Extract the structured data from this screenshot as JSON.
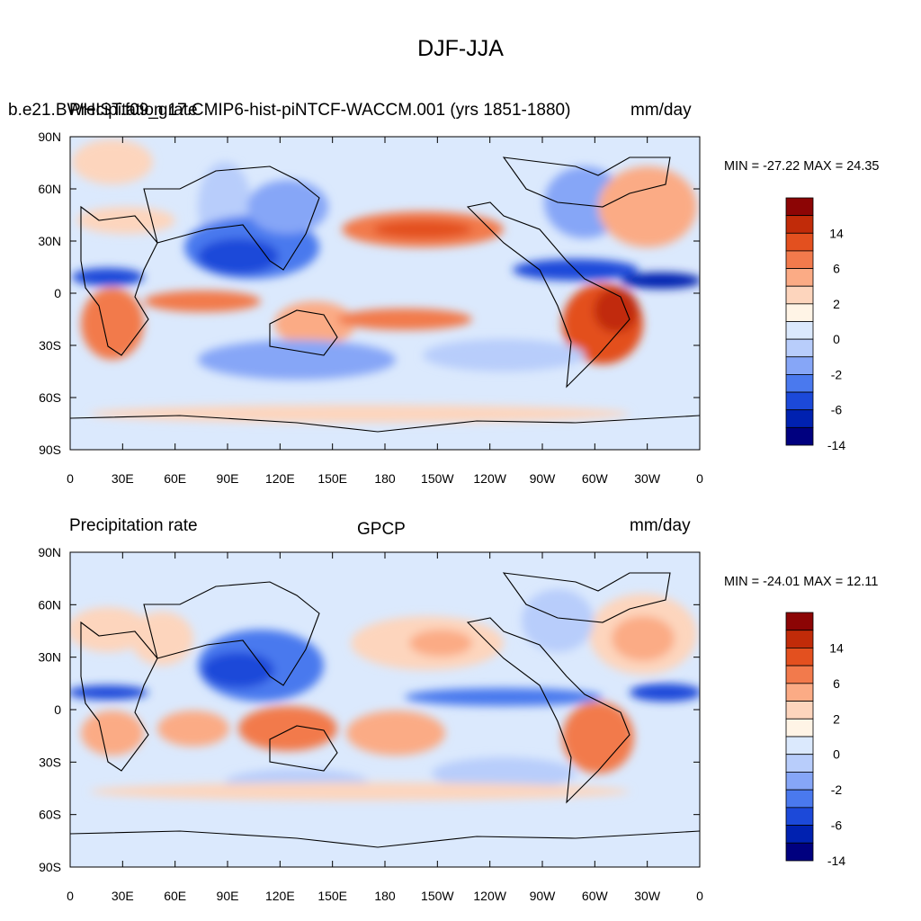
{
  "title": "DJF-JJA",
  "colorbar": {
    "colors": [
      "#00007f",
      "#0021b0",
      "#1c49d9",
      "#4a79ee",
      "#86a6f7",
      "#b8cdfb",
      "#dbe9fd",
      "#fff4e6",
      "#fdd5bd",
      "#fbab85",
      "#f27a4c",
      "#e3501f",
      "#c12b09",
      "#8c0505"
    ],
    "labels": [
      "-14",
      "-6",
      "-2",
      "0",
      "2",
      "6",
      "14"
    ]
  },
  "panels": [
    {
      "left_title": "b.e21.BWHIST.f09_g17.CMIP6-hist-piNTCF-WACCM.001 (yrs 1851-1880)",
      "overlay_left": "Precipitation rate",
      "overlay_right": "mm/day",
      "center_title": "",
      "right_title": "",
      "minmax": "MIN = -27.22 MAX =  24.35"
    },
    {
      "left_title": "Precipitation rate",
      "overlay_left": "",
      "overlay_right": "",
      "center_title": "GPCP",
      "right_title": "mm/day",
      "minmax": "MIN = -24.01 MAX =  12.11"
    }
  ],
  "chart_data": [
    {
      "type": "heatmap",
      "title": "b.e21.BWHIST.f09_g17.CMIP6-hist-piNTCF-WACCM.001 (yrs 1851-1880)",
      "variable": "Precipitation rate",
      "units": "mm/day",
      "min": -27.22,
      "max": 24.35,
      "x_ticks": [
        "0",
        "30E",
        "60E",
        "90E",
        "120E",
        "150E",
        "180",
        "150W",
        "120W",
        "90W",
        "60W",
        "30W",
        "0"
      ],
      "y_ticks": [
        "90N",
        "60N",
        "30N",
        "0",
        "30S",
        "60S",
        "90S"
      ],
      "xlim": [
        0,
        360
      ],
      "ylim": [
        -90,
        90
      ],
      "levels": [
        -14,
        -10,
        -6,
        -4,
        -2,
        -1,
        0,
        1,
        2,
        4,
        6,
        10,
        14
      ],
      "colorbar_labels": [
        "-14",
        "-6",
        "-2",
        "0",
        "2",
        "6",
        "14"
      ]
    },
    {
      "type": "heatmap",
      "title": "GPCP",
      "variable": "Precipitation rate",
      "units": "mm/day",
      "min": -24.01,
      "max": 12.11,
      "x_ticks": [
        "0",
        "30E",
        "60E",
        "90E",
        "120E",
        "150E",
        "180",
        "150W",
        "120W",
        "90W",
        "60W",
        "30W",
        "0"
      ],
      "y_ticks": [
        "90N",
        "60N",
        "30N",
        "0",
        "30S",
        "60S",
        "90S"
      ],
      "xlim": [
        0,
        360
      ],
      "ylim": [
        -90,
        90
      ],
      "levels": [
        -14,
        -10,
        -6,
        -4,
        -2,
        -1,
        0,
        1,
        2,
        4,
        6,
        10,
        14
      ],
      "colorbar_labels": [
        "-14",
        "-6",
        "-2",
        "0",
        "2",
        "6",
        "14"
      ]
    }
  ]
}
